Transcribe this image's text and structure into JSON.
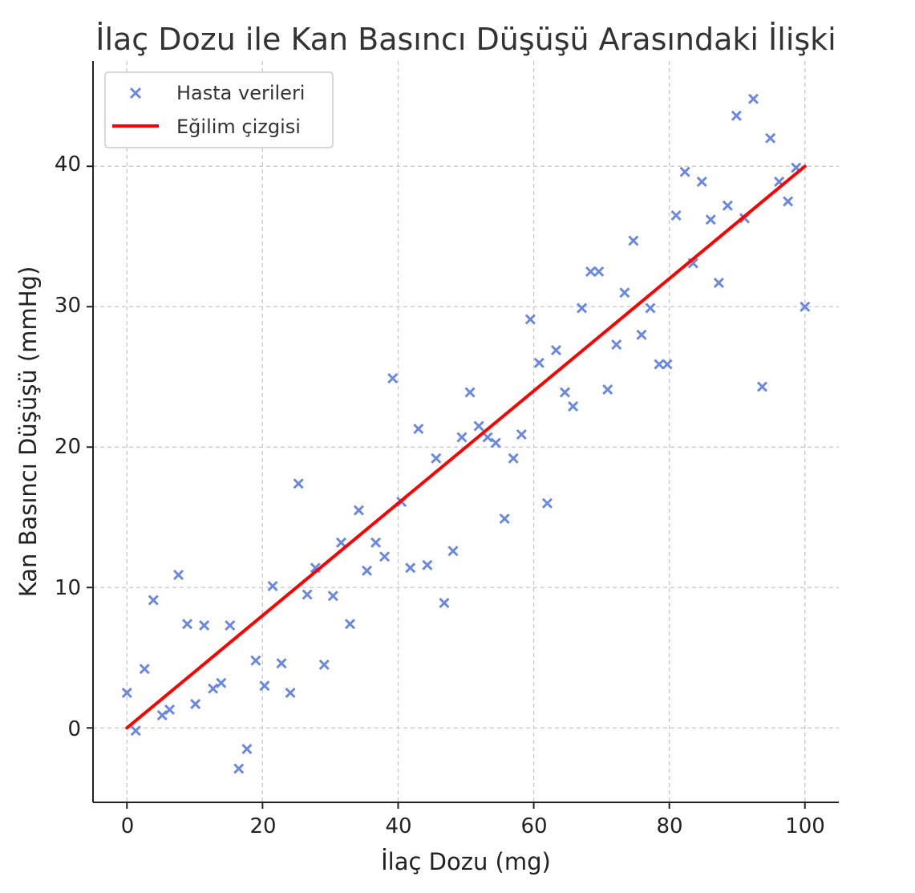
{
  "chart_data": {
    "type": "scatter",
    "title": "İlaç Dozu ile Kan Basıncı Düşüşü Arasındaki İlişki",
    "xlabel": "İlaç Dozu (mg)",
    "ylabel": "Kan Basıncı Düşüşü (mmHg)",
    "xlim": [
      -5,
      105
    ],
    "ylim": [
      -5.3,
      47.5
    ],
    "xticks": [
      "0",
      "20",
      "40",
      "60",
      "80",
      "100"
    ],
    "yticks": [
      "0",
      "10",
      "20",
      "30",
      "40"
    ],
    "grid": true,
    "grid_style": "dashed",
    "legend_position": "top-left",
    "colors": {
      "scatter": "#6a88e0",
      "trend": "#ff0000"
    },
    "series": [
      {
        "name": "Hasta verileri",
        "marker": "x",
        "points": [
          [
            0.0,
            2.5
          ],
          [
            1.3,
            -0.2
          ],
          [
            2.6,
            4.2
          ],
          [
            3.9,
            9.1
          ],
          [
            5.2,
            0.9
          ],
          [
            6.3,
            1.3
          ],
          [
            7.6,
            10.9
          ],
          [
            8.9,
            7.4
          ],
          [
            10.1,
            1.7
          ],
          [
            11.4,
            7.3
          ],
          [
            12.7,
            2.8
          ],
          [
            13.9,
            3.2
          ],
          [
            15.2,
            7.3
          ],
          [
            16.5,
            -2.9
          ],
          [
            17.7,
            -1.5
          ],
          [
            19.0,
            4.8
          ],
          [
            20.3,
            3.0
          ],
          [
            21.5,
            10.1
          ],
          [
            22.8,
            4.6
          ],
          [
            24.1,
            2.5
          ],
          [
            25.3,
            17.4
          ],
          [
            26.6,
            9.5
          ],
          [
            27.8,
            11.4
          ],
          [
            29.1,
            4.5
          ],
          [
            30.4,
            9.4
          ],
          [
            31.6,
            13.2
          ],
          [
            32.9,
            7.4
          ],
          [
            34.2,
            15.5
          ],
          [
            35.4,
            11.2
          ],
          [
            36.7,
            13.2
          ],
          [
            38.0,
            12.2
          ],
          [
            39.2,
            24.9
          ],
          [
            40.5,
            16.1
          ],
          [
            41.8,
            11.4
          ],
          [
            43.0,
            21.3
          ],
          [
            44.3,
            11.6
          ],
          [
            45.6,
            19.2
          ],
          [
            46.8,
            8.9
          ],
          [
            48.1,
            12.6
          ],
          [
            49.4,
            20.7
          ],
          [
            50.6,
            23.9
          ],
          [
            51.9,
            21.5
          ],
          [
            53.2,
            20.7
          ],
          [
            54.4,
            20.3
          ],
          [
            55.7,
            14.9
          ],
          [
            57.0,
            19.2
          ],
          [
            58.2,
            20.9
          ],
          [
            59.5,
            29.1
          ],
          [
            60.8,
            26.0
          ],
          [
            62.0,
            16.0
          ],
          [
            63.3,
            26.9
          ],
          [
            64.6,
            23.9
          ],
          [
            65.8,
            22.9
          ],
          [
            67.1,
            29.9
          ],
          [
            68.4,
            32.5
          ],
          [
            69.6,
            32.5
          ],
          [
            70.9,
            24.1
          ],
          [
            72.2,
            27.3
          ],
          [
            73.4,
            31.0
          ],
          [
            74.7,
            34.7
          ],
          [
            75.9,
            28.0
          ],
          [
            77.2,
            29.9
          ],
          [
            78.5,
            25.9
          ],
          [
            79.7,
            25.9
          ],
          [
            81.0,
            36.5
          ],
          [
            82.3,
            39.6
          ],
          [
            83.5,
            33.1
          ],
          [
            84.8,
            38.9
          ],
          [
            86.1,
            36.2
          ],
          [
            87.3,
            31.7
          ],
          [
            88.6,
            37.2
          ],
          [
            89.9,
            43.6
          ],
          [
            91.1,
            36.3
          ],
          [
            92.4,
            44.8
          ],
          [
            93.7,
            24.3
          ],
          [
            94.9,
            42.0
          ],
          [
            96.2,
            38.9
          ],
          [
            97.5,
            37.5
          ],
          [
            98.7,
            39.9
          ],
          [
            100.0,
            30.0
          ]
        ]
      },
      {
        "name": "Eğilim çizgisi",
        "marker": "line",
        "points": [
          [
            0,
            0
          ],
          [
            100,
            40
          ]
        ]
      }
    ]
  }
}
